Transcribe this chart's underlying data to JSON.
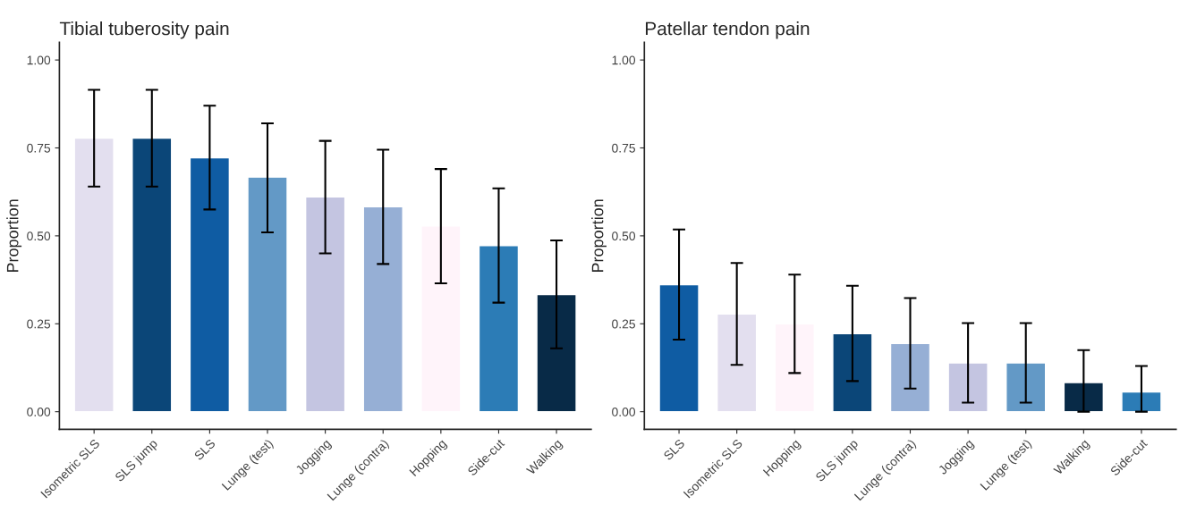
{
  "chart_data": [
    {
      "type": "bar",
      "title": "Tibial tuberosity pain",
      "ylabel": "Proportion",
      "categories": [
        "Isometric SLS",
        "SLS jump",
        "SLS",
        "Lunge (test)",
        "Jogging",
        "Lunge (contra)",
        "Hopping",
        "Side-cut",
        "Walking"
      ],
      "values": [
        0.778,
        0.778,
        0.722,
        0.667,
        0.611,
        0.583,
        0.528,
        0.472,
        0.333
      ],
      "colors": [
        "#e3dfef",
        "#0b4678",
        "#0f5ca3",
        "#6399c6",
        "#c4c5e1",
        "#96afd5",
        "#fff4fa",
        "#2c7cb6",
        "#082a47"
      ],
      "errors": [
        [
          0.64,
          0.915
        ],
        [
          0.64,
          0.915
        ],
        [
          0.575,
          0.87
        ],
        [
          0.51,
          0.82
        ],
        [
          0.45,
          0.77
        ],
        [
          0.42,
          0.745
        ],
        [
          0.365,
          0.69
        ],
        [
          0.31,
          0.635
        ],
        [
          0.18,
          0.487
        ]
      ],
      "ylim": [
        -0.05,
        1.05
      ],
      "yticks": [
        {
          "value": 0,
          "label": "0.00"
        },
        {
          "value": 0.25,
          "label": "0.25"
        },
        {
          "value": 0.5,
          "label": "0.50"
        },
        {
          "value": 0.75,
          "label": "0.75"
        },
        {
          "value": 1,
          "label": "1.00"
        }
      ],
      "grid": false,
      "legend": false
    },
    {
      "type": "bar",
      "title": "Patellar tendon pain",
      "ylabel": "Proportion",
      "categories": [
        "SLS",
        "Isometric SLS",
        "Hopping",
        "SLS jump",
        "Lunge (contra)",
        "Jogging",
        "Lunge (test)",
        "Walking",
        "Side-cut"
      ],
      "values": [
        0.361,
        0.278,
        0.25,
        0.222,
        0.194,
        0.139,
        0.139,
        0.083,
        0.056
      ],
      "colors": [
        "#0f5ca3",
        "#e3dfef",
        "#fff4fa",
        "#0b4678",
        "#96afd5",
        "#c4c5e1",
        "#6399c6",
        "#082a47",
        "#2c7cb6"
      ],
      "errors": [
        [
          0.205,
          0.518
        ],
        [
          0.133,
          0.423
        ],
        [
          0.11,
          0.39
        ],
        [
          0.087,
          0.358
        ],
        [
          0.066,
          0.323
        ],
        [
          0.026,
          0.252
        ],
        [
          0.026,
          0.252
        ],
        [
          0,
          0.175
        ],
        [
          0,
          0.13
        ]
      ],
      "ylim": [
        -0.05,
        1.05
      ],
      "yticks": [
        {
          "value": 0,
          "label": "0.00"
        },
        {
          "value": 0.25,
          "label": "0.25"
        },
        {
          "value": 0.5,
          "label": "0.50"
        },
        {
          "value": 0.75,
          "label": "0.75"
        },
        {
          "value": 1,
          "label": "1.00"
        }
      ],
      "grid": false,
      "legend": false
    }
  ]
}
